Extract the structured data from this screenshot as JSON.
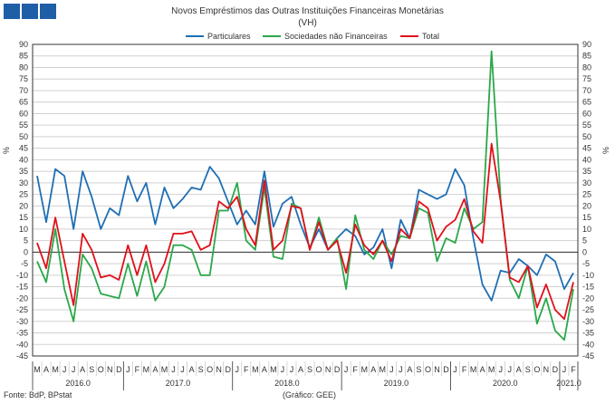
{
  "title": "Novos Empréstimos das Outras Instituições Financeiras Monetárias",
  "subtitle": "(VH)",
  "footer": {
    "source": "Fonte: BdP, BPstat",
    "credit": "(Gráfico: GEE)"
  },
  "colors": {
    "logo": "#1f5fa8",
    "particulares": "#1f6fb4",
    "sociedades": "#2aa84a",
    "total": "#e0101a",
    "grid": "#d0d0d0",
    "axis": "#333333"
  },
  "chart_data": {
    "type": "line",
    "ylabel": "%",
    "ylim": [
      -45,
      90
    ],
    "yticks": [
      -45,
      -40,
      -35,
      -30,
      -25,
      -20,
      -15,
      -10,
      -5,
      0,
      5,
      10,
      15,
      20,
      25,
      30,
      35,
      40,
      45,
      50,
      55,
      60,
      65,
      70,
      75,
      80,
      85,
      90
    ],
    "grid": true,
    "legend": "top",
    "month_labels": [
      "M",
      "A",
      "M",
      "J",
      "J",
      "A",
      "S",
      "O",
      "N",
      "D",
      "J",
      "F",
      "M",
      "A",
      "M",
      "J",
      "J",
      "A",
      "S",
      "O",
      "N",
      "D",
      "J",
      "F",
      "M",
      "A",
      "M",
      "J",
      "J",
      "A",
      "S",
      "O",
      "N",
      "D",
      "J",
      "F",
      "M",
      "A",
      "M",
      "J",
      "J",
      "A",
      "S",
      "O",
      "N",
      "D",
      "J",
      "F",
      "M",
      "A",
      "M",
      "J",
      "J",
      "A",
      "S",
      "O",
      "N",
      "D",
      "J",
      "F"
    ],
    "year_labels": [
      {
        "label": "2016.0",
        "start": 0,
        "end": 10
      },
      {
        "label": "2017.0",
        "start": 10,
        "end": 22
      },
      {
        "label": "2018.0",
        "start": 22,
        "end": 34
      },
      {
        "label": "2019.0",
        "start": 34,
        "end": 46
      },
      {
        "label": "2020.0",
        "start": 46,
        "end": 58
      },
      {
        "label": "2021.0",
        "start": 58,
        "end": 60
      }
    ],
    "series": [
      {
        "name": "Particulares",
        "key": "particulares",
        "values": [
          33,
          13,
          36,
          33,
          10,
          35,
          24,
          10,
          19,
          16,
          33,
          22,
          30,
          12,
          28,
          19,
          23,
          28,
          27,
          37,
          32,
          22,
          12,
          18,
          12,
          35,
          11,
          21,
          24,
          12,
          2,
          10,
          1,
          6,
          10,
          7,
          -1,
          2,
          10,
          -7,
          14,
          6,
          27,
          25,
          23,
          25,
          36,
          29,
          6,
          -14,
          -21,
          -8,
          -9,
          -3,
          -6,
          -10,
          -1,
          -4,
          -16,
          -9
        ]
      },
      {
        "name": "Sociedades não Financeiras",
        "key": "sociedades",
        "values": [
          -4,
          -13,
          10,
          -16,
          -30,
          -1,
          -7,
          -18,
          -19,
          -20,
          -5,
          -19,
          -4,
          -21,
          -15,
          3,
          3,
          1,
          -10,
          -10,
          18,
          18,
          30,
          5,
          1,
          28,
          -2,
          -3,
          21,
          19,
          1,
          15,
          1,
          6,
          -16,
          16,
          1,
          -3,
          5,
          -1,
          7,
          6,
          19,
          17,
          -4,
          6,
          4,
          19,
          10,
          13,
          87,
          23,
          -12,
          -20,
          -6,
          -31,
          -20,
          -34,
          -38,
          -16
        ]
      },
      {
        "name": "Total",
        "key": "total",
        "values": [
          4,
          -7,
          15,
          -4,
          -23,
          8,
          1,
          -11,
          -10,
          -12,
          3,
          -10,
          3,
          -13,
          -5,
          8,
          8,
          9,
          1,
          3,
          22,
          19,
          24,
          10,
          3,
          31,
          1,
          5,
          20,
          19,
          1,
          13,
          1,
          5,
          -9,
          12,
          3,
          -1,
          5,
          -4,
          10,
          6,
          22,
          19,
          5,
          11,
          14,
          23,
          9,
          4,
          47,
          22,
          -11,
          -13,
          -6,
          -24,
          -14,
          -25,
          -29,
          -13
        ]
      }
    ]
  }
}
